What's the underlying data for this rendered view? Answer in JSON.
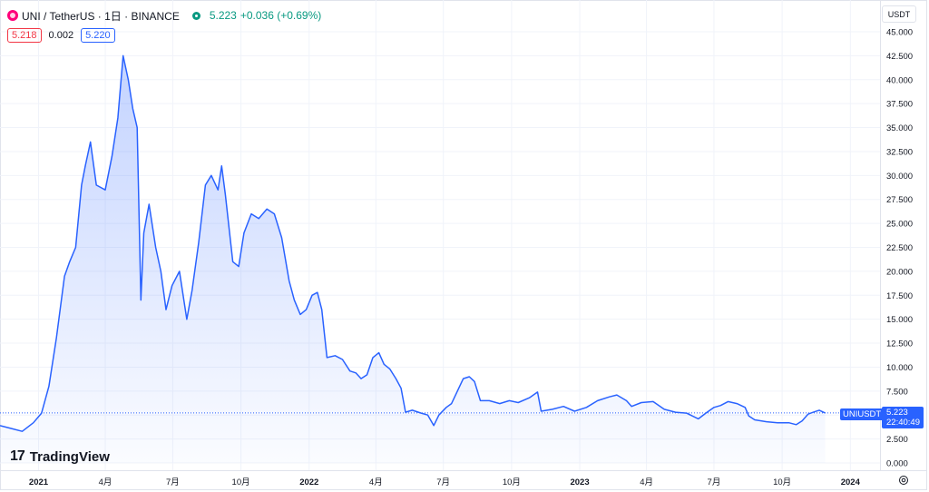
{
  "header": {
    "symbol": "UNI / TetherUS · 1日 · BINANCE",
    "price": "5.223",
    "change": "+0.036 (+0.69%)"
  },
  "quote": {
    "bid": "5.218",
    "spread": "0.002",
    "ask": "5.220"
  },
  "currency": "USDT",
  "last_price": {
    "symbol": "UNIUSDT",
    "price": "5.223",
    "countdown": "22:40:49"
  },
  "branding": "TradingView",
  "colors": {
    "line": "#2962ff",
    "up": "#089981",
    "down": "#f23645"
  },
  "chart_data": {
    "type": "area",
    "title": "UNI / TetherUS · 1日 · BINANCE",
    "ylim": [
      0,
      45
    ],
    "y_ticks": [
      "45.000",
      "42.500",
      "40.000",
      "37.500",
      "35.000",
      "32.500",
      "30.000",
      "27.500",
      "25.000",
      "22.500",
      "20.000",
      "17.500",
      "15.000",
      "12.500",
      "10.000",
      "7.500",
      "5.000",
      "2.500",
      "0.000"
    ],
    "x_ticks": [
      "2021",
      "4月",
      "7月",
      "10月",
      "2022",
      "4月",
      "7月",
      "10月",
      "2023",
      "4月",
      "7月",
      "10月",
      "2024"
    ],
    "x_tick_dates": [
      "2021-01-01",
      "2021-04-01",
      "2021-07-01",
      "2021-10-01",
      "2022-01-01",
      "2022-04-01",
      "2022-07-01",
      "2022-10-01",
      "2023-01-01",
      "2023-04-01",
      "2023-07-01",
      "2023-10-01",
      "2024-01-01"
    ],
    "x_range": [
      "2020-11-10",
      "2024-02-10"
    ],
    "series": [
      {
        "values": [
          [
            "2020-11-10",
            3.9
          ],
          [
            "2020-11-25",
            3.6
          ],
          [
            "2020-12-10",
            3.3
          ],
          [
            "2020-12-25",
            4.2
          ],
          [
            "2021-01-05",
            5.2
          ],
          [
            "2021-01-15",
            8.0
          ],
          [
            "2021-01-25",
            13.0
          ],
          [
            "2021-02-05",
            19.5
          ],
          [
            "2021-02-12",
            21.0
          ],
          [
            "2021-02-20",
            22.5
          ],
          [
            "2021-02-28",
            29.0
          ],
          [
            "2021-03-05",
            31.0
          ],
          [
            "2021-03-12",
            33.5
          ],
          [
            "2021-03-20",
            29.0
          ],
          [
            "2021-04-01",
            28.5
          ],
          [
            "2021-04-10",
            32.0
          ],
          [
            "2021-04-18",
            36.0
          ],
          [
            "2021-04-25",
            42.5
          ],
          [
            "2021-05-02",
            40.0
          ],
          [
            "2021-05-08",
            37.0
          ],
          [
            "2021-05-14",
            35.0
          ],
          [
            "2021-05-19",
            17.0
          ],
          [
            "2021-05-23",
            24.0
          ],
          [
            "2021-05-30",
            27.0
          ],
          [
            "2021-06-08",
            22.5
          ],
          [
            "2021-06-15",
            20.0
          ],
          [
            "2021-06-22",
            16.0
          ],
          [
            "2021-06-30",
            18.5
          ],
          [
            "2021-07-10",
            20.0
          ],
          [
            "2021-07-20",
            15.0
          ],
          [
            "2021-07-27",
            18.0
          ],
          [
            "2021-08-05",
            23.0
          ],
          [
            "2021-08-14",
            29.0
          ],
          [
            "2021-08-22",
            30.0
          ],
          [
            "2021-08-31",
            28.5
          ],
          [
            "2021-09-05",
            31.0
          ],
          [
            "2021-09-10",
            28.0
          ],
          [
            "2021-09-20",
            21.0
          ],
          [
            "2021-09-28",
            20.5
          ],
          [
            "2021-10-05",
            24.0
          ],
          [
            "2021-10-15",
            26.0
          ],
          [
            "2021-10-25",
            25.5
          ],
          [
            "2021-11-05",
            26.5
          ],
          [
            "2021-11-15",
            26.0
          ],
          [
            "2021-11-25",
            23.5
          ],
          [
            "2021-12-05",
            19.0
          ],
          [
            "2021-12-12",
            17.0
          ],
          [
            "2021-12-20",
            15.5
          ],
          [
            "2021-12-28",
            16.0
          ],
          [
            "2022-01-05",
            17.5
          ],
          [
            "2022-01-12",
            17.8
          ],
          [
            "2022-01-18",
            16.0
          ],
          [
            "2022-01-25",
            11.0
          ],
          [
            "2022-02-05",
            11.2
          ],
          [
            "2022-02-15",
            10.8
          ],
          [
            "2022-02-25",
            9.6
          ],
          [
            "2022-03-05",
            9.4
          ],
          [
            "2022-03-12",
            8.8
          ],
          [
            "2022-03-20",
            9.2
          ],
          [
            "2022-03-28",
            11.0
          ],
          [
            "2022-04-05",
            11.5
          ],
          [
            "2022-04-12",
            10.3
          ],
          [
            "2022-04-20",
            9.8
          ],
          [
            "2022-04-28",
            8.8
          ],
          [
            "2022-05-05",
            7.8
          ],
          [
            "2022-05-11",
            5.3
          ],
          [
            "2022-05-20",
            5.5
          ],
          [
            "2022-06-01",
            5.2
          ],
          [
            "2022-06-10",
            5.0
          ],
          [
            "2022-06-18",
            3.9
          ],
          [
            "2022-06-25",
            5.0
          ],
          [
            "2022-07-05",
            5.8
          ],
          [
            "2022-07-12",
            6.2
          ],
          [
            "2022-07-20",
            7.5
          ],
          [
            "2022-07-28",
            8.8
          ],
          [
            "2022-08-05",
            9.0
          ],
          [
            "2022-08-12",
            8.5
          ],
          [
            "2022-08-20",
            6.5
          ],
          [
            "2022-09-01",
            6.5
          ],
          [
            "2022-09-15",
            6.2
          ],
          [
            "2022-09-28",
            6.5
          ],
          [
            "2022-10-10",
            6.3
          ],
          [
            "2022-10-25",
            6.8
          ],
          [
            "2022-11-05",
            7.4
          ],
          [
            "2022-11-10",
            5.4
          ],
          [
            "2022-11-25",
            5.6
          ],
          [
            "2022-12-10",
            5.9
          ],
          [
            "2022-12-25",
            5.4
          ],
          [
            "2023-01-10",
            5.8
          ],
          [
            "2023-01-25",
            6.5
          ],
          [
            "2023-02-10",
            6.9
          ],
          [
            "2023-02-20",
            7.1
          ],
          [
            "2023-03-05",
            6.5
          ],
          [
            "2023-03-12",
            5.9
          ],
          [
            "2023-03-25",
            6.3
          ],
          [
            "2023-04-10",
            6.4
          ],
          [
            "2023-04-25",
            5.6
          ],
          [
            "2023-05-10",
            5.3
          ],
          [
            "2023-05-25",
            5.2
          ],
          [
            "2023-06-10",
            4.6
          ],
          [
            "2023-06-20",
            5.2
          ],
          [
            "2023-07-01",
            5.8
          ],
          [
            "2023-07-10",
            6.0
          ],
          [
            "2023-07-20",
            6.4
          ],
          [
            "2023-08-01",
            6.2
          ],
          [
            "2023-08-12",
            5.8
          ],
          [
            "2023-08-17",
            4.9
          ],
          [
            "2023-08-25",
            4.5
          ],
          [
            "2023-09-10",
            4.3
          ],
          [
            "2023-09-25",
            4.2
          ],
          [
            "2023-10-10",
            4.2
          ],
          [
            "2023-10-20",
            4.0
          ],
          [
            "2023-10-28",
            4.4
          ],
          [
            "2023-11-05",
            5.1
          ],
          [
            "2023-11-12",
            5.3
          ],
          [
            "2023-11-20",
            5.5
          ],
          [
            "2023-11-28",
            5.223
          ]
        ]
      }
    ]
  }
}
